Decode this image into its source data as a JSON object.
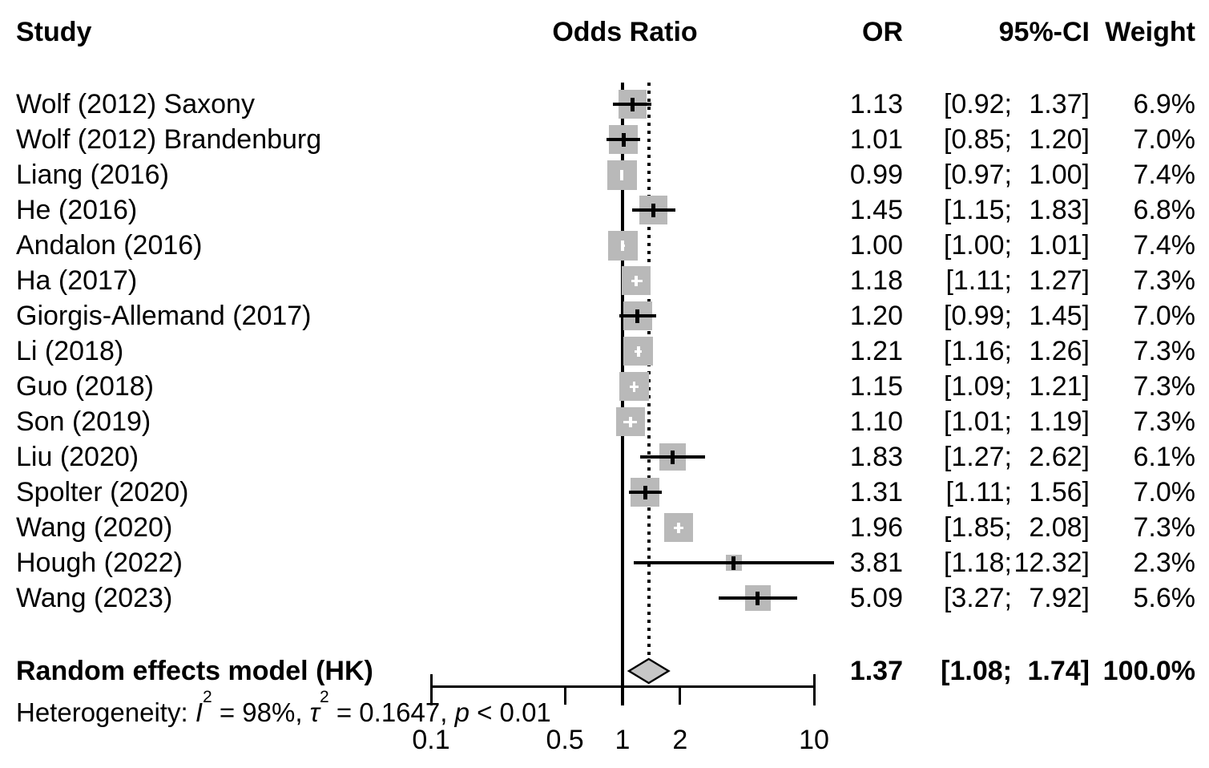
{
  "header": {
    "study": "Study",
    "odds_ratio": "Odds Ratio",
    "or": "OR",
    "ci": "95%-CI",
    "weight": "Weight"
  },
  "chart_data": {
    "type": "forest",
    "effect_measure": "Odds Ratio",
    "x_scale": "log",
    "x_ticks": [
      {
        "label": "0.1",
        "value": 0.1
      },
      {
        "label": "0.5",
        "value": 0.5
      },
      {
        "label": "1",
        "value": 1
      },
      {
        "label": "2",
        "value": 2
      },
      {
        "label": "10",
        "value": 10
      }
    ],
    "reference_line_or": 1.0,
    "dotted_line_or": 1.37,
    "studies": [
      {
        "name": "Wolf (2012) Saxony",
        "or": 1.13,
        "ci": [
          0.92,
          1.37
        ],
        "weight_pct": 6.9
      },
      {
        "name": "Wolf (2012) Brandenburg",
        "or": 1.01,
        "ci": [
          0.85,
          1.2
        ],
        "weight_pct": 7.0
      },
      {
        "name": "Liang (2016)",
        "or": 0.99,
        "ci": [
          0.97,
          1.0
        ],
        "weight_pct": 7.4
      },
      {
        "name": "He (2016)",
        "or": 1.45,
        "ci": [
          1.15,
          1.83
        ],
        "weight_pct": 6.8
      },
      {
        "name": "Andalon (2016)",
        "or": 1.0,
        "ci": [
          1.0,
          1.01
        ],
        "weight_pct": 7.4
      },
      {
        "name": "Ha (2017)",
        "or": 1.18,
        "ci": [
          1.11,
          1.27
        ],
        "weight_pct": 7.3
      },
      {
        "name": "Giorgis-Allemand (2017)",
        "or": 1.2,
        "ci": [
          0.99,
          1.45
        ],
        "weight_pct": 7.0
      },
      {
        "name": "Li (2018)",
        "or": 1.21,
        "ci": [
          1.16,
          1.26
        ],
        "weight_pct": 7.3
      },
      {
        "name": "Guo (2018)",
        "or": 1.15,
        "ci": [
          1.09,
          1.21
        ],
        "weight_pct": 7.3
      },
      {
        "name": "Son (2019)",
        "or": 1.1,
        "ci": [
          1.01,
          1.19
        ],
        "weight_pct": 7.3
      },
      {
        "name": "Liu (2020)",
        "or": 1.83,
        "ci": [
          1.27,
          2.62
        ],
        "weight_pct": 6.1
      },
      {
        "name": "Spolter (2020)",
        "or": 1.31,
        "ci": [
          1.11,
          1.56
        ],
        "weight_pct": 7.0
      },
      {
        "name": "Wang (2020)",
        "or": 1.96,
        "ci": [
          1.85,
          2.08
        ],
        "weight_pct": 7.3
      },
      {
        "name": "Hough (2022)",
        "or": 3.81,
        "ci": [
          1.18,
          12.32
        ],
        "weight_pct": 2.3
      },
      {
        "name": "Wang (2023)",
        "or": 5.09,
        "ci": [
          3.27,
          7.92
        ],
        "weight_pct": 5.6
      }
    ],
    "summary": {
      "name": "Random effects model (HK)",
      "or": 1.37,
      "ci": [
        1.08,
        1.74
      ],
      "weight_pct": 100.0
    },
    "heterogeneity": {
      "prefix": "Heterogeneity: ",
      "i_label": "I",
      "i_sup": "2",
      "i_val": " = 98%, ",
      "tau_label": "τ",
      "tau_sup": "2",
      "tau_val": " = 0.1647, ",
      "p_label": "p",
      "p_val": " < 0.01"
    }
  }
}
